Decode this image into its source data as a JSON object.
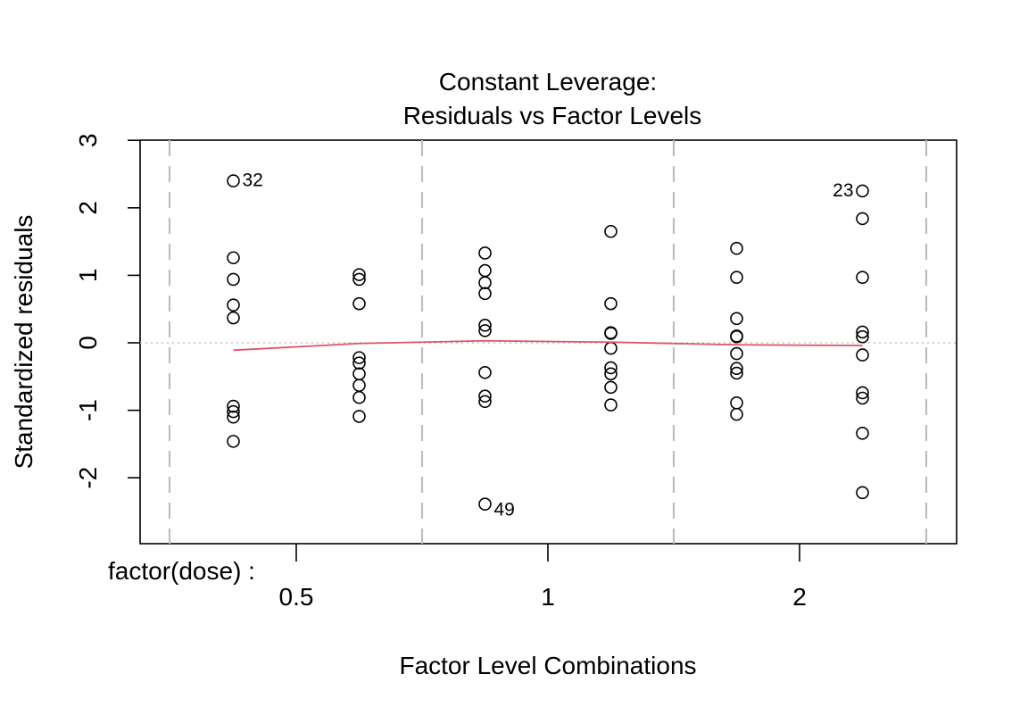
{
  "chart_data": {
    "type": "scatter",
    "title": "Constant Leverage:",
    "subtitle": "Residuals vs Factor Levels",
    "xlabel": "Factor Level Combinations",
    "ylabel": "Standardized residuals",
    "factor_label": "factor(dose) :",
    "factor_levels": [
      "0.5",
      "1",
      "2"
    ],
    "yticks": [
      "-2",
      "-1",
      "0",
      "1",
      "2",
      "3"
    ],
    "ylim": [
      -2.95,
      3
    ],
    "grid": false,
    "groups": [
      {
        "level": "0.5",
        "points": [
          {
            "y": 2.4,
            "label": "32"
          },
          {
            "y": 1.26
          },
          {
            "y": 0.94
          },
          {
            "y": 0.56
          },
          {
            "y": 0.37
          },
          {
            "y": -0.94
          },
          {
            "y": -1.02
          },
          {
            "y": -1.1
          },
          {
            "y": -1.46
          }
        ]
      },
      {
        "level": "0.5",
        "points": [
          {
            "y": 1.01
          },
          {
            "y": 0.94
          },
          {
            "y": 0.58
          },
          {
            "y": -0.22
          },
          {
            "y": -0.3
          },
          {
            "y": -0.46
          },
          {
            "y": -0.63
          },
          {
            "y": -0.81
          },
          {
            "y": -1.09
          }
        ]
      },
      {
        "level": "1",
        "points": [
          {
            "y": 1.33
          },
          {
            "y": 1.07
          },
          {
            "y": 0.89
          },
          {
            "y": 0.73
          },
          {
            "y": 0.26
          },
          {
            "y": 0.18
          },
          {
            "y": -0.44
          },
          {
            "y": -0.79
          },
          {
            "y": -0.87
          },
          {
            "y": -2.39,
            "label": "49"
          }
        ]
      },
      {
        "level": "1",
        "points": [
          {
            "y": 1.65
          },
          {
            "y": 0.58
          },
          {
            "y": 0.15
          },
          {
            "y": 0.14
          },
          {
            "y": -0.08
          },
          {
            "y": -0.37
          },
          {
            "y": -0.46
          },
          {
            "y": -0.66
          },
          {
            "y": -0.92
          }
        ]
      },
      {
        "level": "2",
        "points": [
          {
            "y": 1.4
          },
          {
            "y": 0.97
          },
          {
            "y": 0.36
          },
          {
            "y": 0.1
          },
          {
            "y": 0.09
          },
          {
            "y": -0.16
          },
          {
            "y": -0.38
          },
          {
            "y": -0.45
          },
          {
            "y": -0.89
          },
          {
            "y": -1.06
          }
        ]
      },
      {
        "level": "2",
        "points": [
          {
            "y": 2.25,
            "label": "23"
          },
          {
            "y": 1.84
          },
          {
            "y": 0.97
          },
          {
            "y": 0.16
          },
          {
            "y": 0.09
          },
          {
            "y": -0.18
          },
          {
            "y": -0.74
          },
          {
            "y": -0.82
          },
          {
            "y": -1.34
          },
          {
            "y": -2.22
          }
        ]
      }
    ],
    "smooth_line": [
      -0.11,
      -0.01,
      0.03,
      0.01,
      -0.03,
      -0.04
    ],
    "colors": {
      "points": "#000000",
      "smooth": "#DF536B",
      "separators": "#BEBEBE",
      "zero_line": "#BEBEBE"
    }
  }
}
